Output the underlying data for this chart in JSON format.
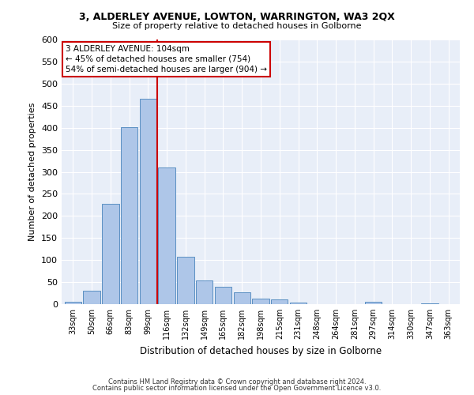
{
  "title1": "3, ALDERLEY AVENUE, LOWTON, WARRINGTON, WA3 2QX",
  "title2": "Size of property relative to detached houses in Golborne",
  "xlabel": "Distribution of detached houses by size in Golborne",
  "ylabel": "Number of detached properties",
  "categories": [
    "33sqm",
    "50sqm",
    "66sqm",
    "83sqm",
    "99sqm",
    "116sqm",
    "132sqm",
    "149sqm",
    "165sqm",
    "182sqm",
    "198sqm",
    "215sqm",
    "231sqm",
    "248sqm",
    "264sqm",
    "281sqm",
    "297sqm",
    "314sqm",
    "330sqm",
    "347sqm",
    "363sqm"
  ],
  "values": [
    5,
    30,
    228,
    401,
    465,
    310,
    108,
    53,
    40,
    26,
    13,
    11,
    4,
    0,
    0,
    0,
    5,
    0,
    0,
    2,
    0
  ],
  "bar_color": "#aec6e8",
  "bar_edge_color": "#5a8fc2",
  "redline_category_index": 4.5,
  "annotation_line1": "3 ALDERLEY AVENUE: 104sqm",
  "annotation_line2": "← 45% of detached houses are smaller (754)",
  "annotation_line3": "54% of semi-detached houses are larger (904) →",
  "annotation_box_color": "#ffffff",
  "annotation_box_edge_color": "#cc0000",
  "ylim": [
    0,
    600
  ],
  "yticks": [
    0,
    50,
    100,
    150,
    200,
    250,
    300,
    350,
    400,
    450,
    500,
    550,
    600
  ],
  "background_color": "#e8eef8",
  "grid_color": "#c8d4e8",
  "footer1": "Contains HM Land Registry data © Crown copyright and database right 2024.",
  "footer2": "Contains public sector information licensed under the Open Government Licence v3.0."
}
